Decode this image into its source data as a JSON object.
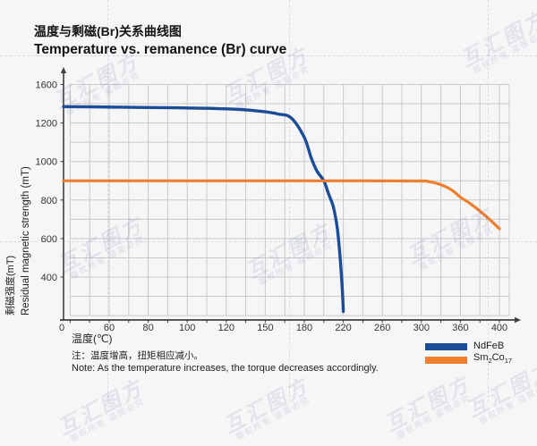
{
  "header": {
    "title_zh": "温度与剩磁(Br)关系曲线图",
    "title_en": "Temperature vs. remanence (Br) curve"
  },
  "chart_data": {
    "type": "line",
    "title": "Temperature vs. remanence (Br) curve",
    "x_axis": {
      "title": "温度(℃)",
      "tick_labels": [
        "0",
        "60",
        "80",
        "100",
        "120",
        "150",
        "180",
        "220",
        "260",
        "300",
        "360",
        "400"
      ],
      "tick_values": [
        0,
        60,
        80,
        100,
        120,
        150,
        180,
        220,
        260,
        300,
        360,
        400
      ],
      "spacing": "equal-per-tick (non-linear values as displayed)"
    },
    "y_axis": {
      "title_zh": "剩磁强度(mT)",
      "title_en": "Residual magnetic strength (mT)",
      "tick_labels": [
        "1600",
        "1200",
        "1000",
        "800",
        "600",
        "400"
      ],
      "origin_label": "0",
      "unit": "mT",
      "spacing": "equal-per-tick (non-linear values as displayed)"
    },
    "grid": true,
    "legend_position": "bottom-right",
    "series": [
      {
        "name": "NdFeB",
        "color": "#1a4c98",
        "points": [
          [
            0,
            1370
          ],
          [
            40,
            1367
          ],
          [
            80,
            1361
          ],
          [
            100,
            1356
          ],
          [
            120,
            1347
          ],
          [
            135,
            1336
          ],
          [
            150,
            1316
          ],
          [
            160,
            1293
          ],
          [
            170,
            1252
          ],
          [
            180,
            1125
          ],
          [
            187,
            1020
          ],
          [
            193,
            950
          ],
          [
            200,
            900
          ],
          [
            205,
            830
          ],
          [
            210,
            760
          ],
          [
            214,
            645
          ],
          [
            217,
            485
          ],
          [
            219,
            265
          ],
          [
            220,
            45
          ]
        ]
      },
      {
        "name": "Sm2Co17",
        "color": "#ef7f2e",
        "points": [
          [
            0,
            900
          ],
          [
            80,
            900
          ],
          [
            160,
            900
          ],
          [
            240,
            900
          ],
          [
            300,
            899
          ],
          [
            310,
            896
          ],
          [
            320,
            890
          ],
          [
            330,
            880
          ],
          [
            340,
            865
          ],
          [
            350,
            844
          ],
          [
            360,
            815
          ],
          [
            370,
            782
          ],
          [
            380,
            743
          ],
          [
            390,
            699
          ],
          [
            400,
            651
          ]
        ]
      }
    ]
  },
  "legend": {
    "items": [
      {
        "label": "NdFeB",
        "color": "#1a4c98"
      },
      {
        "label": "Sm2Co17",
        "color": "#ef7f2e",
        "parts": {
          "p0": "Sm",
          "s0": "2",
          "p1": "Co",
          "s1": "17"
        }
      }
    ]
  },
  "note": {
    "zh": "注：温度增高，扭矩相应减小。",
    "en": "Note: As the temperature increases, the torque decreases accordingly."
  },
  "watermark": {
    "logo": "互汇图方",
    "notice": "版权所有 盗图必究"
  },
  "colors": {
    "background": "#f6f6f7",
    "grid": "#c9c9c9",
    "axis": "#3f3f3f",
    "tick_text": "#333333",
    "ndfeb": "#1a4c98",
    "sm2co17": "#ef7f2e"
  }
}
